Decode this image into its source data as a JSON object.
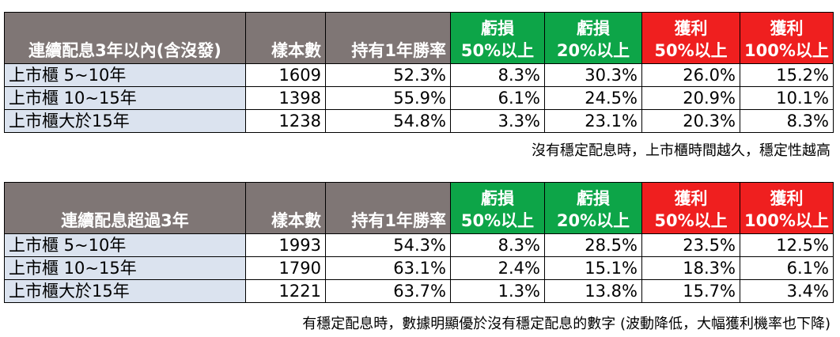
{
  "chart_data": [
    {
      "type": "table",
      "columns": [
        "連續配息3年以內(含沒發)",
        "樣本數",
        "持有1年勝率",
        "虧損 50%以上",
        "虧損 20%以上",
        "獲利 50%以上",
        "獲利 100%以上"
      ],
      "header": {
        "category": "連續配息3年以內(含沒發)",
        "samples": "樣本數",
        "winrate": "持有1年勝率",
        "loss50": {
          "line1": "虧損",
          "line2": "50%以上"
        },
        "loss20": {
          "line1": "虧損",
          "line2": "20%以上"
        },
        "gain50": {
          "line1": "獲利",
          "line2": "50%以上"
        },
        "gain100": {
          "line1": "獲利",
          "line2": "100%以上"
        }
      },
      "rows": [
        {
          "category": "上市櫃 5~10年",
          "samples": "1609",
          "winrate": "52.3%",
          "loss50": "8.3%",
          "loss20": "30.3%",
          "gain50": "26.0%",
          "gain100": "15.2%"
        },
        {
          "category": "上市櫃 10~15年",
          "samples": "1398",
          "winrate": "55.9%",
          "loss50": "6.1%",
          "loss20": "24.5%",
          "gain50": "20.9%",
          "gain100": "10.1%"
        },
        {
          "category": "上市櫃大於15年",
          "samples": "1238",
          "winrate": "54.8%",
          "loss50": "3.3%",
          "loss20": "23.1%",
          "gain50": "20.3%",
          "gain100": "8.3%"
        }
      ],
      "note": "沒有穩定配息時，上市櫃時間越久，穩定性越高"
    },
    {
      "type": "table",
      "columns": [
        "連續配息超過3年",
        "樣本數",
        "持有1年勝率",
        "虧損 50%以上",
        "虧損 20%以上",
        "獲利 50%以上",
        "獲利 100%以上"
      ],
      "header": {
        "category": "連續配息超過3年",
        "samples": "樣本數",
        "winrate": "持有1年勝率",
        "loss50": {
          "line1": "虧損",
          "line2": "50%以上"
        },
        "loss20": {
          "line1": "虧損",
          "line2": "20%以上"
        },
        "gain50": {
          "line1": "獲利",
          "line2": "50%以上"
        },
        "gain100": {
          "line1": "獲利",
          "line2": "100%以上"
        }
      },
      "rows": [
        {
          "category": "上市櫃 5~10年",
          "samples": "1993",
          "winrate": "54.3%",
          "loss50": "8.3%",
          "loss20": "28.5%",
          "gain50": "23.5%",
          "gain100": "12.5%"
        },
        {
          "category": "上市櫃 10~15年",
          "samples": "1790",
          "winrate": "63.1%",
          "loss50": "2.4%",
          "loss20": "15.1%",
          "gain50": "18.3%",
          "gain100": "6.1%"
        },
        {
          "category": "上市櫃大於15年",
          "samples": "1221",
          "winrate": "63.7%",
          "loss50": "1.3%",
          "loss20": "13.8%",
          "gain50": "15.7%",
          "gain100": "3.4%"
        }
      ],
      "note": "有穩定配息時，數據明顯優於沒有穩定配息的數字 (波動降低，大幅獲利機率也下降)"
    }
  ],
  "colors": {
    "header_gray": "#7f7675",
    "loss_green": "#0da548",
    "gain_red": "#ef1f1f",
    "category_blue": "#dbe3ef"
  }
}
